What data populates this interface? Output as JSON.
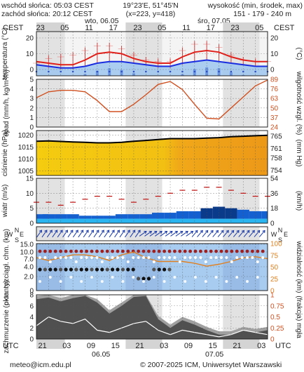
{
  "header": {
    "sunrise": "wschód słońca: 05:03 CEST",
    "sunset": "zachód słońca: 20:12 CEST",
    "coords": "19°23'E, 51°45'N",
    "grid": "(x=223, y=418)",
    "height_title": "wysokość (min, środek, max)",
    "height_vals": "151 - 179 - 240 m"
  },
  "top_axis": {
    "tz_left": "CEST",
    "tz_right": "CEST",
    "day1": "wto, 06.05",
    "day2": "śro, 07.05",
    "hours": [
      "23",
      "05",
      "11",
      "17",
      "23",
      "05",
      "11",
      "17",
      "23",
      "05"
    ]
  },
  "bottom_axis": {
    "tz_left": "UTC",
    "tz_right": "UTC",
    "hours": [
      "21",
      "03",
      "09",
      "15",
      "21",
      "03",
      "09",
      "15",
      "21",
      "03"
    ],
    "day1": "06.05",
    "day2": "07.05"
  },
  "footer": {
    "email": "meteo@icm.edu.pl",
    "copyright": "© 2007-2025 ICM, Uniwersytet Warszawski"
  },
  "chart_data": [
    {
      "type": "line",
      "panel": "temperature",
      "ylabel": "temperatura (°C)",
      "ylabel_right": "(°C)",
      "yticks": [
        0,
        10,
        20
      ],
      "ylim": [
        -4,
        24
      ],
      "x_hours": [
        0,
        3,
        6,
        9,
        12,
        15,
        18,
        21,
        24,
        27,
        30,
        33,
        36,
        39,
        42,
        45,
        48,
        51,
        54,
        57
      ],
      "series": [
        {
          "values": [
            5,
            4,
            3,
            3,
            6,
            10,
            11,
            10,
            7,
            5,
            4,
            4,
            8,
            11,
            12,
            11,
            8,
            6,
            5,
            5
          ],
          "color": "#e0201a"
        },
        {
          "values": [
            3,
            2,
            1,
            1,
            2,
            4,
            5,
            5,
            4,
            3,
            2,
            2,
            4,
            5,
            6,
            5,
            4,
            3,
            2,
            2
          ],
          "color": "#1a2ee0"
        }
      ],
      "bands": [
        [
          2,
          6
        ],
        [
          1,
          9
        ],
        [
          0,
          10
        ],
        [
          0,
          11
        ],
        [
          2,
          14
        ],
        [
          4,
          17
        ],
        [
          5,
          17
        ],
        [
          5,
          15
        ],
        [
          4,
          11
        ],
        [
          3,
          8
        ],
        [
          1,
          7
        ],
        [
          1,
          7
        ],
        [
          3,
          14
        ],
        [
          5,
          18
        ],
        [
          6,
          18
        ],
        [
          5,
          16
        ],
        [
          4,
          11
        ],
        [
          3,
          8
        ],
        [
          2,
          7
        ],
        [
          2,
          7
        ]
      ],
      "rain_bars": [
        0,
        0,
        0,
        0,
        2,
        6,
        9,
        7,
        3,
        0,
        0,
        0,
        2,
        8,
        10,
        9,
        4,
        1,
        0,
        0
      ]
    },
    {
      "type": "line",
      "panel": "precipitation_humidity",
      "ylabel": "opad (mm/h, kg/m²/h)",
      "ylabel_right": "wilgotność wzgl. (%)",
      "yticks": [
        0,
        1,
        2,
        3,
        4,
        5
      ],
      "yticks_right": [
        24,
        37,
        50,
        63,
        76,
        89
      ],
      "ylim": [
        0,
        5
      ],
      "ylim_right": [
        24,
        89
      ],
      "x_hours": [
        0,
        3,
        6,
        9,
        12,
        15,
        18,
        21,
        24,
        27,
        30,
        33,
        36,
        39,
        42,
        45,
        48,
        51,
        54,
        57
      ],
      "series": [
        {
          "name": "wilgotność",
          "values": [
            64,
            72,
            74,
            74,
            72,
            60,
            45,
            45,
            55,
            68,
            82,
            86,
            75,
            55,
            36,
            35,
            50,
            65,
            80,
            88
          ],
          "color": "#d05020"
        }
      ]
    },
    {
      "type": "area",
      "panel": "pressure",
      "ylabel": "ciśnienie (hPa)",
      "ylabel_right": "(mm Hg)",
      "yticks": [
        1005,
        1010,
        1015,
        1020
      ],
      "yticks_right": [
        754,
        758,
        761,
        765
      ],
      "ylim": [
        1003,
        1022
      ],
      "x_hours": [
        0,
        3,
        6,
        9,
        12,
        15,
        18,
        21,
        24,
        27,
        30,
        33,
        36,
        39,
        42,
        45,
        48,
        51,
        54,
        57
      ],
      "series": [
        {
          "values": [
            1017.5,
            1017.6,
            1017.4,
            1017.2,
            1017.0,
            1016.8,
            1016.8,
            1017.0,
            1017.5,
            1017.8,
            1018.2,
            1018.6,
            1018.6,
            1018.6,
            1018.8,
            1019.0,
            1019.4,
            1019.6,
            1019.8,
            1020.0
          ],
          "color": "#000000"
        }
      ]
    },
    {
      "type": "line",
      "panel": "wind",
      "ylabel": "wiatr (m/s)",
      "ylabel_right": "(km/h)",
      "yticks": [
        0,
        5,
        10,
        15
      ],
      "yticks_right": [
        0,
        18,
        36,
        54
      ],
      "ylim": [
        0,
        15
      ],
      "ylim_right": [
        0,
        54
      ],
      "x_hours": [
        0,
        3,
        6,
        9,
        12,
        15,
        18,
        21,
        24,
        27,
        30,
        33,
        36,
        39,
        42,
        45,
        48,
        51,
        54,
        57
      ],
      "series": [
        {
          "name": "średnia",
          "values": [
            3,
            3,
            3,
            3,
            2.5,
            2.5,
            2.5,
            3,
            3,
            3,
            3.5,
            3.5,
            4,
            4,
            5,
            5.5,
            5,
            4.5,
            4,
            4
          ],
          "color": "#0040d0"
        },
        {
          "name": "porywy",
          "values": [
            7,
            7,
            6,
            7,
            8,
            9,
            9,
            8,
            7,
            8,
            9,
            10,
            11,
            11,
            12,
            12,
            11,
            10,
            9,
            9
          ],
          "color": "#c01010"
        }
      ]
    },
    {
      "type": "scatter",
      "panel": "visibility",
      "ylabel": "pion. rozciągł. chm. (km)",
      "ylabel_right": "widzialność (km)",
      "yticks": [
        0,
        2.0,
        4.0,
        7.0,
        10.0,
        15.0
      ],
      "yticks_right": [
        0,
        25,
        50,
        75,
        100
      ],
      "ylim": [
        0,
        15
      ],
      "ylim_right": [
        0,
        100
      ],
      "x_hours": [
        0,
        3,
        6,
        9,
        12,
        15,
        18,
        21,
        24,
        27,
        30,
        33,
        36,
        39,
        42,
        45,
        48,
        51,
        54,
        57
      ],
      "series": [
        {
          "name": "widzialność",
          "values": [
            70,
            64,
            70,
            76,
            76,
            72,
            64,
            76,
            82,
            70,
            62,
            62,
            62,
            58,
            52,
            56,
            62,
            70,
            72,
            68
          ],
          "color": "#e08020"
        }
      ]
    },
    {
      "type": "area",
      "panel": "cloud_cover",
      "ylabel": "zachmurzenie (oktanty)",
      "ylabel_right": "(frakcja) mgła",
      "yticks": [
        0,
        2,
        4,
        6,
        8
      ],
      "yticks_right": [
        0,
        0.25,
        0.5,
        0.75,
        1
      ],
      "ylim": [
        0,
        8
      ],
      "x_hours": [
        0,
        3,
        6,
        9,
        12,
        15,
        18,
        21,
        24,
        27,
        30,
        33,
        36,
        39,
        42,
        45,
        48,
        51,
        54,
        57
      ],
      "series": [
        {
          "name": "całkowite",
          "values": [
            7.2,
            7.5,
            6.8,
            7.4,
            7.8,
            6.6,
            4.6,
            6.0,
            7.6,
            7.8,
            3.6,
            2.0,
            3.4,
            2.6,
            1.6,
            0.8,
            0.8,
            1.6,
            1.2,
            1.6
          ],
          "color": "#606060"
        }
      ]
    }
  ]
}
